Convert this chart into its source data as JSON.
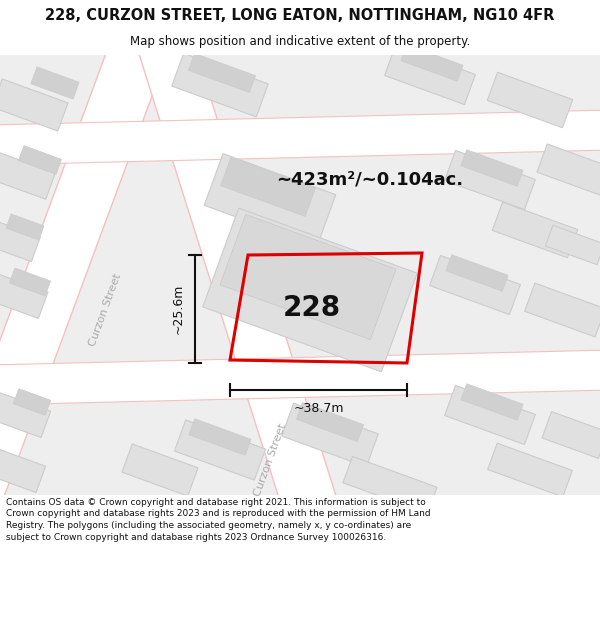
{
  "title_line1": "228, CURZON STREET, LONG EATON, NOTTINGHAM, NG10 4FR",
  "title_line2": "Map shows position and indicative extent of the property.",
  "area_text": "~423m²/~0.104ac.",
  "label_228": "228",
  "dim_width": "~38.7m",
  "dim_height": "~25.6m",
  "street_label1": "Curzon Street",
  "street_label2": "Curzon Street",
  "footer_text": "Contains OS data © Crown copyright and database right 2021. This information is subject to Crown copyright and database rights 2023 and is reproduced with the permission of HM Land Registry. The polygons (including the associated geometry, namely x, y co-ordinates) are subject to Crown copyright and database rights 2023 Ordnance Survey 100026316.",
  "bg_color": "#eeeeee",
  "road_color": "#ffffff",
  "road_outline_color": "#f5c8c8",
  "building_fill": "#e0e0e0",
  "building_edge": "#cccccc",
  "plot_color": "#dd0000",
  "title_color": "#111111",
  "footer_color": "#111111",
  "street_text_color": "#aaaaaa",
  "dim_color": "#111111",
  "area_text_color": "#111111"
}
